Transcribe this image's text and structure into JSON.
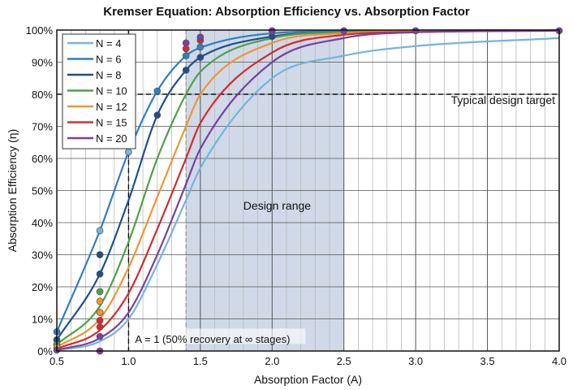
{
  "chart_data": {
    "type": "line",
    "title": "Kremser Equation: Absorption Efficiency vs. Absorption Factor",
    "xlabel": "Absorption Factor (A)",
    "ylabel": "Absorption Efficiency (η)",
    "xlim": [
      0.5,
      4.0
    ],
    "ylim": [
      0,
      100
    ],
    "xticks": [
      "0.5",
      "1.0",
      "1.5",
      "2.0",
      "2.5",
      "3.0",
      "3.5",
      "4.0"
    ],
    "yticks": [
      "0%",
      "10%",
      "20%",
      "30%",
      "40%",
      "50%",
      "60%",
      "70%",
      "80%",
      "90%",
      "100%"
    ],
    "grid": true,
    "legend_position": "top-left",
    "x": [
      0.5,
      0.8,
      1.0,
      1.2,
      1.4,
      1.5,
      2.0,
      2.5,
      3.0,
      4.0
    ],
    "series": [
      {
        "name": "N = 4",
        "color": "#74b4e0",
        "values": [
          0.2,
          3,
          10,
          27,
          47,
          57,
          85,
          92,
          95,
          97.5
        ]
      },
      {
        "name": "N = 6",
        "color": "#2f7fc1",
        "values": [
          6,
          37.5,
          62,
          81,
          92,
          94.5,
          99,
          99.7,
          99.9,
          100
        ]
      },
      {
        "name": "N = 8",
        "color": "#1f4f8a",
        "values": [
          3.5,
          24,
          47,
          73.5,
          87.5,
          91.5,
          98,
          99.3,
          99.7,
          100
        ]
      },
      {
        "name": "N = 10",
        "color": "#4fa04a",
        "values": [
          2,
          14,
          34,
          60,
          80,
          87,
          97.5,
          99.3,
          99.7,
          100
        ]
      },
      {
        "name": "N = 12",
        "color": "#f0952e",
        "values": [
          1.2,
          10,
          26,
          48,
          70,
          80,
          96,
          99,
          99.6,
          100
        ]
      },
      {
        "name": "N = 15",
        "color": "#d42b2b",
        "values": [
          0.7,
          6.5,
          18,
          38,
          60,
          71,
          93,
          98.5,
          99.4,
          99.8
        ]
      },
      {
        "name": "N = 20",
        "color": "#7a3fa0",
        "values": [
          0.3,
          4,
          12,
          30,
          52,
          63,
          90,
          97.5,
          99.3,
          99.8
        ]
      }
    ],
    "markers": [
      {
        "series": 1,
        "x": 0.5,
        "y": 6
      },
      {
        "series": 2,
        "x": 0.5,
        "y": 3.5
      },
      {
        "series": 3,
        "x": 0.5,
        "y": 2
      },
      {
        "series": 4,
        "x": 0.5,
        "y": 1.2
      },
      {
        "series": 6,
        "x": 0.5,
        "y": 0.3
      },
      {
        "series": 0,
        "x": 0.8,
        "y": 37.5
      },
      {
        "series": 2,
        "x": 0.8,
        "y": 30
      },
      {
        "series": 2,
        "x": 0.8,
        "y": 24
      },
      {
        "series": 3,
        "x": 0.8,
        "y": 18.5
      },
      {
        "series": 4,
        "x": 0.8,
        "y": 15.5
      },
      {
        "series": 4,
        "x": 0.8,
        "y": 12
      },
      {
        "series": 5,
        "x": 0.8,
        "y": 9.5
      },
      {
        "series": 5,
        "x": 0.8,
        "y": 7.5
      },
      {
        "series": 6,
        "x": 0.8,
        "y": 4.5
      },
      {
        "series": 6,
        "x": 0.8,
        "y": 0
      },
      {
        "series": 0,
        "x": 1.0,
        "y": 62
      },
      {
        "series": 1,
        "x": 1.2,
        "y": 81
      },
      {
        "series": 2,
        "x": 1.2,
        "y": 73.5
      },
      {
        "series": 1,
        "x": 1.4,
        "y": 92
      },
      {
        "series": 2,
        "x": 1.4,
        "y": 87.5
      },
      {
        "series": 5,
        "x": 1.4,
        "y": 94.2
      },
      {
        "series": 6,
        "x": 1.4,
        "y": 96
      },
      {
        "series": 1,
        "x": 1.5,
        "y": 94.7
      },
      {
        "series": 2,
        "x": 1.5,
        "y": 91.5
      },
      {
        "series": 5,
        "x": 1.5,
        "y": 96.8
      },
      {
        "series": 6,
        "x": 1.5,
        "y": 97.8
      },
      {
        "series": 2,
        "x": 2.0,
        "y": 98
      },
      {
        "series": 6,
        "x": 2.0,
        "y": 99.8
      },
      {
        "series": 6,
        "x": 2.5,
        "y": 99.8
      },
      {
        "series": 6,
        "x": 3.0,
        "y": 99.8
      },
      {
        "series": 6,
        "x": 4.0,
        "y": 99.8
      }
    ],
    "annotations": {
      "design_range": {
        "label": "Design range",
        "from": 1.4,
        "to": 2.5
      },
      "target": {
        "label": "Typical design target",
        "y": 80
      },
      "a_equals_one": {
        "label": "A = 1 (50% recovery at ∞ stages)",
        "x": 1.0
      }
    }
  }
}
